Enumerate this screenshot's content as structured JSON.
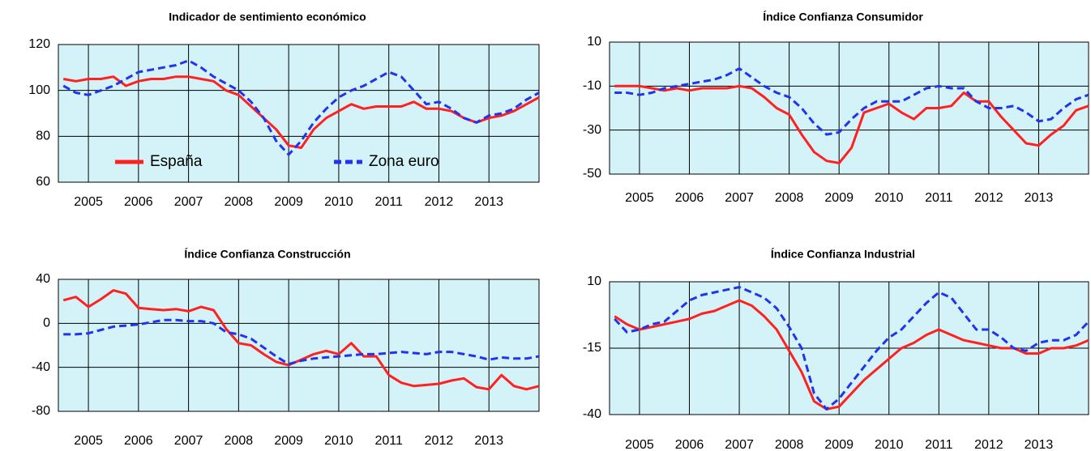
{
  "chart_data": [
    {
      "type": "line",
      "title": "Indicador de sentimiento económico",
      "x": [
        2004.5,
        2004.75,
        2005,
        2005.25,
        2005.5,
        2005.75,
        2006,
        2006.25,
        2006.5,
        2006.75,
        2007,
        2007.25,
        2007.5,
        2007.75,
        2008,
        2008.25,
        2008.5,
        2008.75,
        2009,
        2009.25,
        2009.5,
        2009.75,
        2010,
        2010.25,
        2010.5,
        2010.75,
        2011,
        2011.25,
        2011.5,
        2011.75,
        2012,
        2012.25,
        2012.5,
        2012.75,
        2013,
        2013.25,
        2013.5,
        2013.75,
        2014
      ],
      "xlim": [
        2004.4,
        2014.0
      ],
      "xticks": [
        2005,
        2006,
        2007,
        2008,
        2009,
        2010,
        2011,
        2012,
        2013
      ],
      "ylim": [
        60,
        120
      ],
      "yticks": [
        60,
        80,
        100,
        120
      ],
      "grid": true,
      "legend": "bottom",
      "series": [
        {
          "name": "España",
          "color": "#ff2020",
          "values": [
            105,
            104,
            105,
            105,
            106,
            102,
            104,
            105,
            105,
            106,
            106,
            105,
            104,
            100,
            98,
            93,
            88,
            83,
            76,
            75,
            83,
            88,
            91,
            94,
            92,
            93,
            93,
            93,
            95,
            92,
            92,
            91,
            88,
            86,
            88,
            89,
            91,
            94,
            97
          ]
        },
        {
          "name": "Zona euro",
          "color": "#2233ee",
          "values": [
            102,
            99,
            98,
            100,
            102,
            105,
            108,
            109,
            110,
            111,
            113,
            110,
            106,
            103,
            100,
            95,
            88,
            78,
            72,
            78,
            86,
            92,
            97,
            100,
            102,
            105,
            108,
            106,
            100,
            94,
            95,
            92,
            88,
            86,
            89,
            90,
            92,
            96,
            99
          ]
        }
      ]
    },
    {
      "type": "line",
      "title": "Índice Confianza Consumidor",
      "x": [
        2004.5,
        2004.75,
        2005,
        2005.25,
        2005.5,
        2005.75,
        2006,
        2006.25,
        2006.5,
        2006.75,
        2007,
        2007.25,
        2007.5,
        2007.75,
        2008,
        2008.25,
        2008.5,
        2008.75,
        2009,
        2009.25,
        2009.5,
        2009.75,
        2010,
        2010.25,
        2010.5,
        2010.75,
        2011,
        2011.25,
        2011.5,
        2011.75,
        2012,
        2012.25,
        2012.5,
        2012.75,
        2013,
        2013.25,
        2013.5,
        2013.75,
        2014
      ],
      "xlim": [
        2004.4,
        2014.0
      ],
      "xticks": [
        2005,
        2006,
        2007,
        2008,
        2009,
        2010,
        2011,
        2012,
        2013
      ],
      "ylim": [
        -50,
        10
      ],
      "yticks": [
        -50,
        -30,
        -10,
        10
      ],
      "grid": true,
      "series": [
        {
          "color": "#ff2020",
          "values": [
            -10,
            -10,
            -10,
            -11,
            -12,
            -11,
            -12,
            -11,
            -11,
            -11,
            -10,
            -11,
            -15,
            -20,
            -23,
            -32,
            -40,
            -44,
            -45,
            -38,
            -22,
            -20,
            -18,
            -22,
            -25,
            -20,
            -20,
            -19,
            -13,
            -17,
            -17,
            -24,
            -30,
            -36,
            -37,
            -32,
            -28,
            -21,
            -19
          ]
        },
        {
          "color": "#2233ee",
          "values": [
            -13,
            -13,
            -14,
            -13,
            -11,
            -10,
            -9,
            -8,
            -7,
            -5,
            -2,
            -6,
            -10,
            -13,
            -15,
            -20,
            -27,
            -32,
            -31,
            -25,
            -20,
            -17,
            -17,
            -17,
            -14,
            -11,
            -10,
            -11,
            -11,
            -17,
            -20,
            -20,
            -19,
            -22,
            -26,
            -25,
            -20,
            -16,
            -14
          ]
        }
      ]
    },
    {
      "type": "line",
      "title": "Índice Confianza Construcción",
      "x": [
        2004.5,
        2004.75,
        2005,
        2005.25,
        2005.5,
        2005.75,
        2006,
        2006.25,
        2006.5,
        2006.75,
        2007,
        2007.25,
        2007.5,
        2007.75,
        2008,
        2008.25,
        2008.5,
        2008.75,
        2009,
        2009.25,
        2009.5,
        2009.75,
        2010,
        2010.25,
        2010.5,
        2010.75,
        2011,
        2011.25,
        2011.5,
        2011.75,
        2012,
        2012.25,
        2012.5,
        2012.75,
        2013,
        2013.25,
        2013.5,
        2013.75,
        2014
      ],
      "xlim": [
        2004.4,
        2014.0
      ],
      "xticks": [
        2005,
        2006,
        2007,
        2008,
        2009,
        2010,
        2011,
        2012,
        2013
      ],
      "ylim": [
        -80,
        40
      ],
      "yticks": [
        -80,
        -40,
        0,
        40
      ],
      "grid": true,
      "series": [
        {
          "color": "#ff2020",
          "values": [
            21,
            24,
            15,
            22,
            30,
            27,
            14,
            13,
            12,
            13,
            11,
            15,
            12,
            -5,
            -18,
            -20,
            -28,
            -35,
            -38,
            -33,
            -28,
            -25,
            -28,
            -18,
            -30,
            -30,
            -47,
            -54,
            -57,
            -56,
            -55,
            -52,
            -50,
            -58,
            -60,
            -47,
            -57,
            -60,
            -57
          ]
        },
        {
          "color": "#2233ee",
          "values": [
            -10,
            -10,
            -9,
            -6,
            -3,
            -2,
            -1,
            1,
            3,
            3,
            2,
            2,
            0,
            -8,
            -10,
            -14,
            -22,
            -30,
            -37,
            -34,
            -32,
            -31,
            -30,
            -29,
            -28,
            -28,
            -27,
            -26,
            -27,
            -28,
            -26,
            -26,
            -28,
            -30,
            -33,
            -31,
            -32,
            -32,
            -30
          ]
        }
      ]
    },
    {
      "type": "line",
      "title": "Índice Confianza Industrial",
      "x": [
        2004.5,
        2004.75,
        2005,
        2005.25,
        2005.5,
        2005.75,
        2006,
        2006.25,
        2006.5,
        2006.75,
        2007,
        2007.25,
        2007.5,
        2007.75,
        2008,
        2008.25,
        2008.5,
        2008.75,
        2009,
        2009.25,
        2009.5,
        2009.75,
        2010,
        2010.25,
        2010.5,
        2010.75,
        2011,
        2011.25,
        2011.5,
        2011.75,
        2012,
        2012.25,
        2012.5,
        2012.75,
        2013,
        2013.25,
        2013.5,
        2013.75,
        2014
      ],
      "xlim": [
        2004.4,
        2014.0
      ],
      "xticks": [
        2005,
        2006,
        2007,
        2008,
        2009,
        2010,
        2011,
        2012,
        2013
      ],
      "ylim": [
        -40,
        10
      ],
      "yticks": [
        -40,
        -15,
        10
      ],
      "grid": true,
      "series": [
        {
          "color": "#ff2020",
          "values": [
            -3,
            -6,
            -8,
            -7,
            -6,
            -5,
            -4,
            -2,
            -1,
            1,
            3,
            1,
            -3,
            -8,
            -16,
            -24,
            -35,
            -38,
            -37,
            -32,
            -27,
            -23,
            -19,
            -15,
            -13,
            -10,
            -8,
            -10,
            -12,
            -13,
            -14,
            -15,
            -15,
            -17,
            -17,
            -15,
            -15,
            -14,
            -12
          ]
        },
        {
          "color": "#2233ee",
          "values": [
            -4,
            -9,
            -8,
            -6,
            -5,
            -1,
            3,
            5,
            6,
            7,
            8,
            6,
            4,
            0,
            -7,
            -15,
            -32,
            -38,
            -34,
            -28,
            -22,
            -16,
            -11,
            -8,
            -3,
            2,
            6,
            4,
            -2,
            -8,
            -8,
            -11,
            -15,
            -16,
            -13,
            -12,
            -12,
            -10,
            -5
          ]
        }
      ]
    }
  ]
}
